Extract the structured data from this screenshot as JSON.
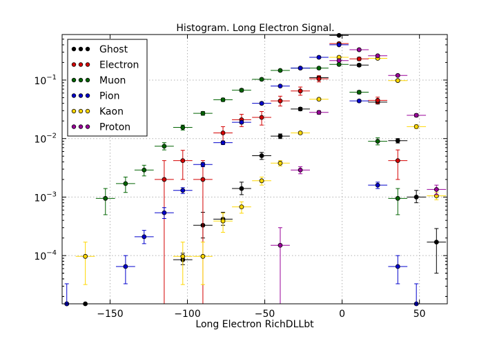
{
  "chart_data": {
    "type": "scatter",
    "title": "Histogram. Long Electron Signal.",
    "xlabel": "Long Electron RichDLLbt",
    "ylabel": "",
    "xlim": [
      -181,
      68
    ],
    "ylim": [
      1.5e-05,
      0.6
    ],
    "y_scale": "log",
    "grid": true,
    "legend_position": "top-left",
    "x_ticks": [
      {
        "value": -150,
        "label": "−150"
      },
      {
        "value": -100,
        "label": "−100"
      },
      {
        "value": -50,
        "label": "−50"
      },
      {
        "value": 0,
        "label": "0"
      },
      {
        "value": 50,
        "label": "50"
      }
    ],
    "y_ticks": [
      {
        "value": 0.0001,
        "base": "10",
        "exp": "−4"
      },
      {
        "value": 0.001,
        "base": "10",
        "exp": "−3"
      },
      {
        "value": 0.01,
        "base": "10",
        "exp": "−2"
      },
      {
        "value": 0.1,
        "base": "10",
        "exp": "−1"
      }
    ],
    "series": [
      {
        "name": "Ghost",
        "color": "#000000",
        "points": [
          [
            -178,
            1.5e-05,
            0.0,
            0.0
          ],
          [
            -166,
            1.5e-05,
            0.0,
            0.0
          ],
          [
            -103,
            8.5e-05,
            7e-05,
            0.00011
          ],
          [
            -90,
            0.00033,
            0.0002,
            0.00055
          ],
          [
            -77,
            0.00042,
            0.00033,
            0.00055
          ],
          [
            -65,
            0.0014,
            0.0011,
            0.0018
          ],
          [
            -52,
            0.0051,
            0.0044,
            0.0058
          ],
          [
            -40,
            0.011,
            0.01,
            0.012
          ],
          [
            -27,
            0.032,
            0.03,
            0.034
          ],
          [
            -15,
            0.11,
            0.105,
            0.118
          ],
          [
            -2,
            0.58,
            0.57,
            0.6
          ],
          [
            11,
            0.18,
            0.17,
            0.19
          ],
          [
            23,
            0.042,
            0.039,
            0.045
          ],
          [
            36,
            0.0092,
            0.0084,
            0.01
          ],
          [
            48,
            0.001,
            0.0008,
            0.0013
          ],
          [
            61,
            0.00017,
            5e-05,
            0.00029
          ]
        ]
      },
      {
        "name": "Electron",
        "color": "#d40000",
        "points": [
          [
            -115,
            0.002,
            1.5e-05,
            0.0042
          ],
          [
            -103,
            0.0042,
            0.002,
            0.0063
          ],
          [
            -90,
            0.002,
            1.5e-05,
            0.0042
          ],
          [
            -77,
            0.0125,
            0.009,
            0.016
          ],
          [
            -65,
            0.021,
            0.016,
            0.026
          ],
          [
            -52,
            0.023,
            0.017,
            0.029
          ],
          [
            -40,
            0.044,
            0.036,
            0.053
          ],
          [
            -27,
            0.065,
            0.055,
            0.076
          ],
          [
            -15,
            0.105,
            0.093,
            0.118
          ],
          [
            -2,
            0.42,
            0.4,
            0.44
          ],
          [
            11,
            0.23,
            0.215,
            0.245
          ],
          [
            23,
            0.045,
            0.04,
            0.051
          ],
          [
            36,
            0.0042,
            0.002,
            0.0064
          ]
        ]
      },
      {
        "name": "Muon",
        "color": "#006400",
        "points": [
          [
            -153,
            0.00095,
            0.0005,
            0.0014
          ],
          [
            -140,
            0.0017,
            0.0012,
            0.0022
          ],
          [
            -128,
            0.0029,
            0.0023,
            0.0035
          ],
          [
            -115,
            0.0074,
            0.0064,
            0.0085
          ],
          [
            -103,
            0.0155,
            0.014,
            0.017
          ],
          [
            -90,
            0.027,
            0.025,
            0.029
          ],
          [
            -77,
            0.046,
            0.043,
            0.049
          ],
          [
            -65,
            0.067,
            0.063,
            0.071
          ],
          [
            -52,
            0.103,
            0.098,
            0.108
          ],
          [
            -40,
            0.146,
            0.14,
            0.152
          ],
          [
            -27,
            0.16,
            0.153,
            0.167
          ],
          [
            -15,
            0.16,
            0.153,
            0.167
          ],
          [
            -2,
            0.185,
            0.178,
            0.192
          ],
          [
            11,
            0.062,
            0.058,
            0.066
          ],
          [
            23,
            0.009,
            0.0078,
            0.0103
          ],
          [
            36,
            0.00095,
            0.0005,
            0.0014
          ]
        ]
      },
      {
        "name": "Pion",
        "color": "#0000cc",
        "points": [
          [
            -178,
            1.5e-05,
            0.0,
            3.3e-05
          ],
          [
            -140,
            6.5e-05,
            3.3e-05,
            0.0001
          ],
          [
            -128,
            0.00021,
            0.00016,
            0.00027
          ],
          [
            -115,
            0.00054,
            0.00043,
            0.00066
          ],
          [
            -103,
            0.0013,
            0.00115,
            0.00145
          ],
          [
            -90,
            0.0036,
            0.0033,
            0.0039
          ],
          [
            -77,
            0.0085,
            0.0079,
            0.0091
          ],
          [
            -65,
            0.019,
            0.018,
            0.02
          ],
          [
            -52,
            0.04,
            0.038,
            0.042
          ],
          [
            -40,
            0.079,
            0.076,
            0.082
          ],
          [
            -27,
            0.16,
            0.155,
            0.165
          ],
          [
            -15,
            0.245,
            0.238,
            0.252
          ],
          [
            -2,
            0.4,
            0.39,
            0.41
          ],
          [
            11,
            0.044,
            0.042,
            0.046
          ],
          [
            23,
            0.0016,
            0.0014,
            0.0018
          ],
          [
            36,
            6.5e-05,
            3.3e-05,
            0.0001
          ],
          [
            48,
            1.5e-05,
            0.0,
            3.3e-05
          ]
        ]
      },
      {
        "name": "Kaon",
        "color": "#ffd700",
        "points": [
          [
            -166,
            9.7e-05,
            3.2e-05,
            0.00017
          ],
          [
            -103,
            9.7e-05,
            3.2e-05,
            0.00017
          ],
          [
            -90,
            9.7e-05,
            3.2e-05,
            0.00017
          ],
          [
            -77,
            0.00039,
            0.00025,
            0.00053
          ],
          [
            -65,
            0.00068,
            0.00053,
            0.00083
          ],
          [
            -52,
            0.0019,
            0.0016,
            0.0022
          ],
          [
            -40,
            0.0038,
            0.0034,
            0.0042
          ],
          [
            -27,
            0.0125,
            0.0118,
            0.0132
          ],
          [
            -15,
            0.047,
            0.045,
            0.049
          ],
          [
            -2,
            0.245,
            0.238,
            0.252
          ],
          [
            11,
            0.33,
            0.32,
            0.34
          ],
          [
            23,
            0.235,
            0.228,
            0.242
          ],
          [
            36,
            0.098,
            0.094,
            0.102
          ],
          [
            48,
            0.016,
            0.0148,
            0.0172
          ],
          [
            61,
            0.00105,
            0.0009,
            0.0012
          ]
        ]
      },
      {
        "name": "Proton",
        "color": "#990099",
        "points": [
          [
            -40,
            0.00015,
            1.5e-05,
            0.0003
          ],
          [
            -27,
            0.0029,
            0.0025,
            0.0033
          ],
          [
            -15,
            0.028,
            0.026,
            0.03
          ],
          [
            -2,
            0.215,
            0.208,
            0.222
          ],
          [
            11,
            0.33,
            0.32,
            0.34
          ],
          [
            23,
            0.26,
            0.252,
            0.268
          ],
          [
            36,
            0.12,
            0.115,
            0.125
          ],
          [
            48,
            0.025,
            0.0235,
            0.0265
          ],
          [
            61,
            0.00135,
            0.0011,
            0.0016
          ]
        ]
      }
    ]
  }
}
